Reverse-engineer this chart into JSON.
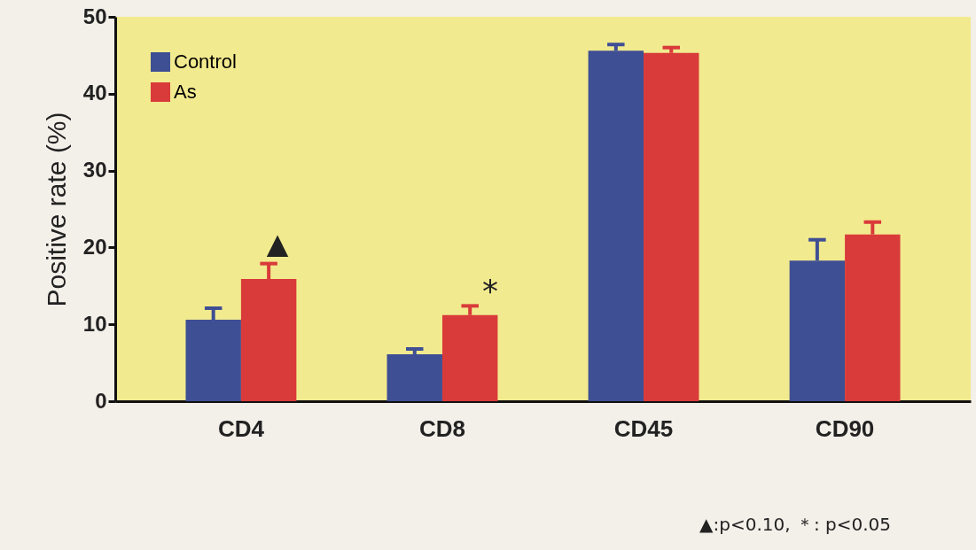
{
  "chart_data": {
    "type": "bar",
    "ylabel": "Positive rate (%)",
    "categories": [
      "CD4",
      "CD8",
      "CD45",
      "CD90"
    ],
    "series": [
      {
        "name": "Control",
        "color": "#3f4f94",
        "values": [
          10.6,
          6.1,
          45.6,
          18.3
        ],
        "errors": [
          [
            10.6,
            12.1
          ],
          [
            6.1,
            6.8
          ],
          [
            45.6,
            46.4
          ],
          [
            18.3,
            21.0
          ]
        ]
      },
      {
        "name": "As",
        "color": "#d93a3a",
        "values": [
          15.9,
          11.2,
          45.3,
          21.7
        ],
        "errors": [
          [
            15.9,
            17.9
          ],
          [
            11.2,
            12.4
          ],
          [
            45.3,
            46.0
          ],
          [
            21.7,
            23.3
          ]
        ]
      }
    ],
    "ylim": [
      0,
      50
    ],
    "yticks": [
      0,
      10,
      20,
      30,
      40,
      50
    ],
    "grid": false,
    "legend": "top left",
    "annotations": [
      "▲",
      "*",
      "▲:p<0.10,  ＊: p<0.05"
    ]
  }
}
